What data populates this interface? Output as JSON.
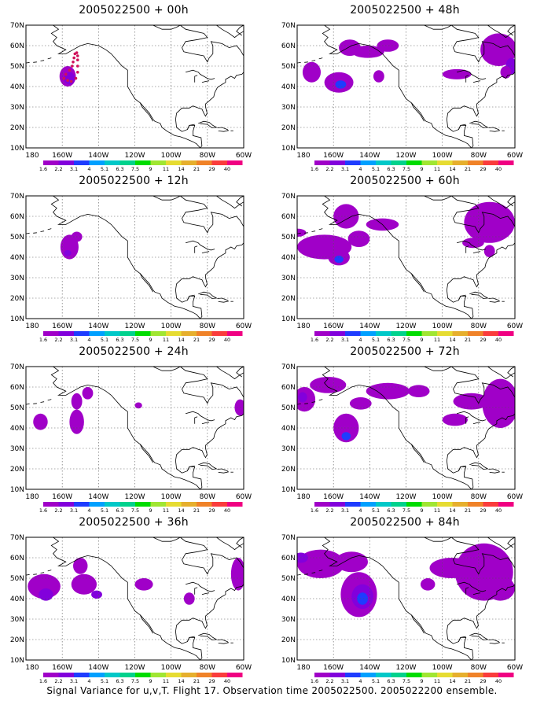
{
  "figure": {
    "footer": "Signal Variance for u,v,T. Flight 17. Observation time 2005022500. 2005022200 ensemble."
  },
  "axes": {
    "lat_labels": [
      "70N",
      "60N",
      "50N",
      "40N",
      "30N",
      "20N",
      "10N"
    ],
    "lon_labels": [
      "180",
      "160W",
      "140W",
      "120W",
      "100W",
      "80W",
      "60W"
    ]
  },
  "colorbar": {
    "labels": [
      "1.6",
      "2.2",
      "3.1",
      "4",
      "5.1",
      "6.3",
      "7.5",
      "9",
      "11",
      "14",
      "21",
      "29",
      "40"
    ],
    "colors": [
      "#a000c8",
      "#8200dc",
      "#1e3cff",
      "#00a0ff",
      "#00c8c8",
      "#00d28c",
      "#00dc00",
      "#a0e632",
      "#e6dc32",
      "#e6af2d",
      "#f08228",
      "#fa3c3c",
      "#f00082"
    ]
  },
  "panels": [
    {
      "title": "2005022500 + 00h",
      "forecast_hour": 0
    },
    {
      "title": "2005022500 + 48h",
      "forecast_hour": 48
    },
    {
      "title": "2005022500 + 12h",
      "forecast_hour": 12
    },
    {
      "title": "2005022500 + 60h",
      "forecast_hour": 60
    },
    {
      "title": "2005022500 + 24h",
      "forecast_hour": 24
    },
    {
      "title": "2005022500 + 72h",
      "forecast_hour": 72
    },
    {
      "title": "2005022500 + 36h",
      "forecast_hour": 36
    },
    {
      "title": "2005022500 + 84h",
      "forecast_hour": 84
    }
  ],
  "flight_track": {
    "panel": 0,
    "points": [
      [
        -153,
        56
      ],
      [
        -153.5,
        54
      ],
      [
        -154,
        52
      ],
      [
        -154.5,
        50
      ],
      [
        -156,
        48
      ],
      [
        -158,
        46
      ],
      [
        -159,
        44
      ],
      [
        -157,
        43
      ],
      [
        -155,
        42.5
      ],
      [
        -152.5,
        44
      ],
      [
        -151.5,
        47
      ],
      [
        -151.5,
        50
      ],
      [
        -151.5,
        53
      ],
      [
        -151.5,
        55
      ],
      [
        -152,
        56.5
      ]
    ]
  }
}
